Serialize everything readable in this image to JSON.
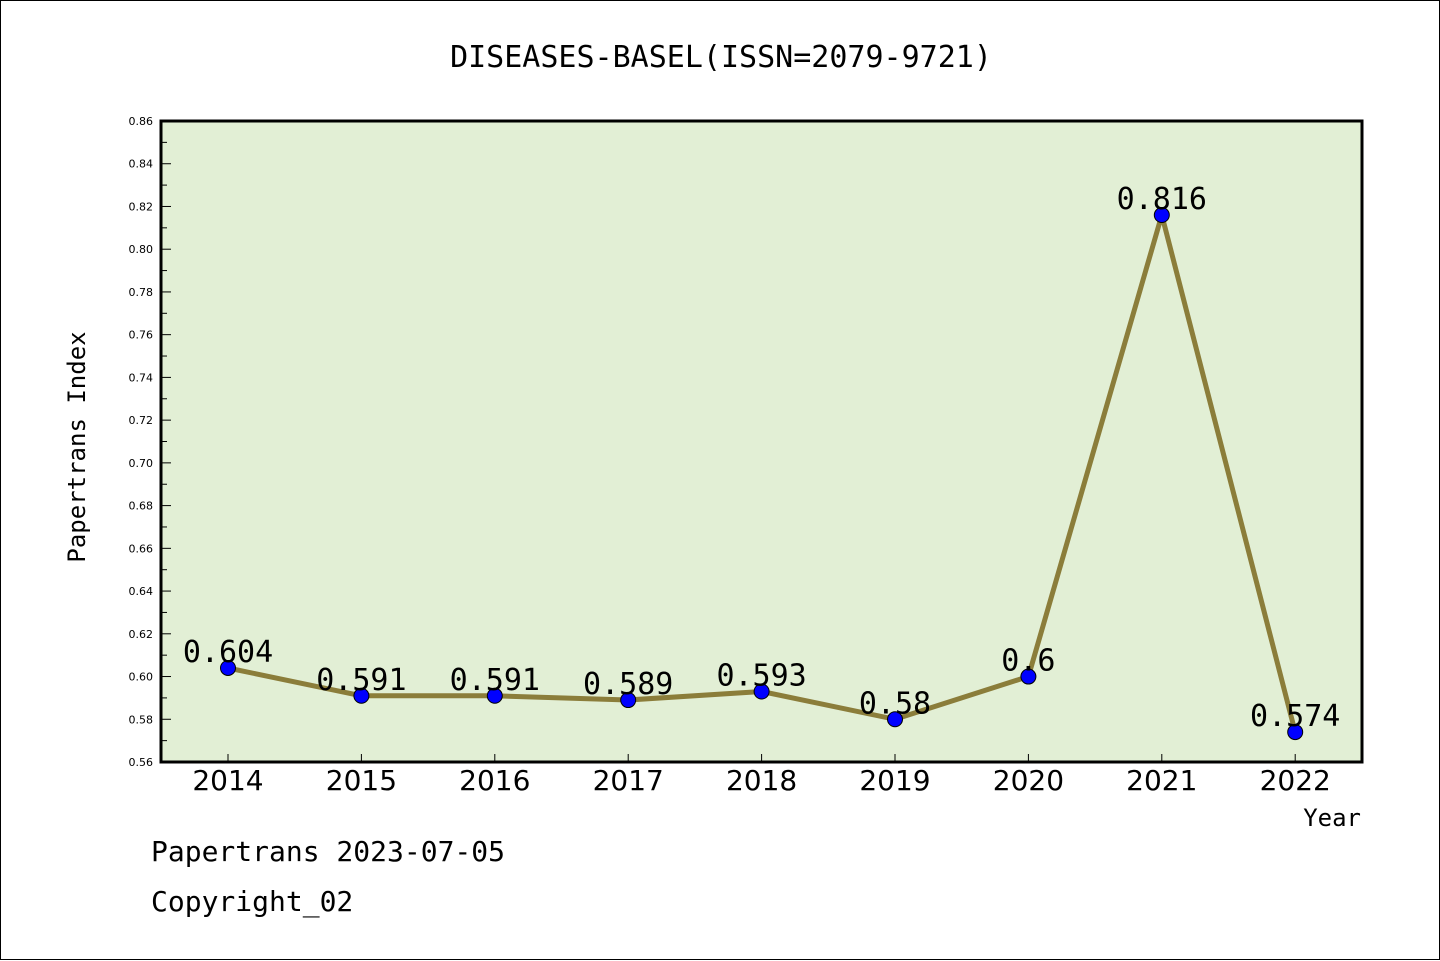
{
  "chart_data": {
    "type": "line",
    "title": "DISEASES-BASEL(ISSN=2079-9721)",
    "xlabel": "Year",
    "ylabel": "Papertrans Index",
    "categories": [
      "2014",
      "2015",
      "2016",
      "2017",
      "2018",
      "2019",
      "2020",
      "2021",
      "2022"
    ],
    "series": [
      {
        "values": [
          0.604,
          0.591,
          0.591,
          0.589,
          0.593,
          0.58,
          0.6,
          0.816,
          0.574
        ],
        "data_labels": [
          "0.604",
          "0.591",
          "0.591",
          "0.589",
          "0.593",
          "0.58",
          "0.6",
          "0.816",
          "0.574"
        ],
        "line_color": "#8b7d3a",
        "marker_color": "#0000ff"
      }
    ],
    "ylim": [
      0.56,
      0.86
    ],
    "y_ticks": [
      "0.56",
      "0.58",
      "0.60",
      "0.62",
      "0.64",
      "0.66",
      "0.68",
      "0.70",
      "0.72",
      "0.74",
      "0.76",
      "0.78",
      "0.80",
      "0.82",
      "0.84",
      "0.86"
    ],
    "grid": false,
    "plot_background": "#e2efd5"
  },
  "footer": {
    "date_line": "Papertrans 2023-07-05",
    "copyright_line": "Copyright_02"
  }
}
